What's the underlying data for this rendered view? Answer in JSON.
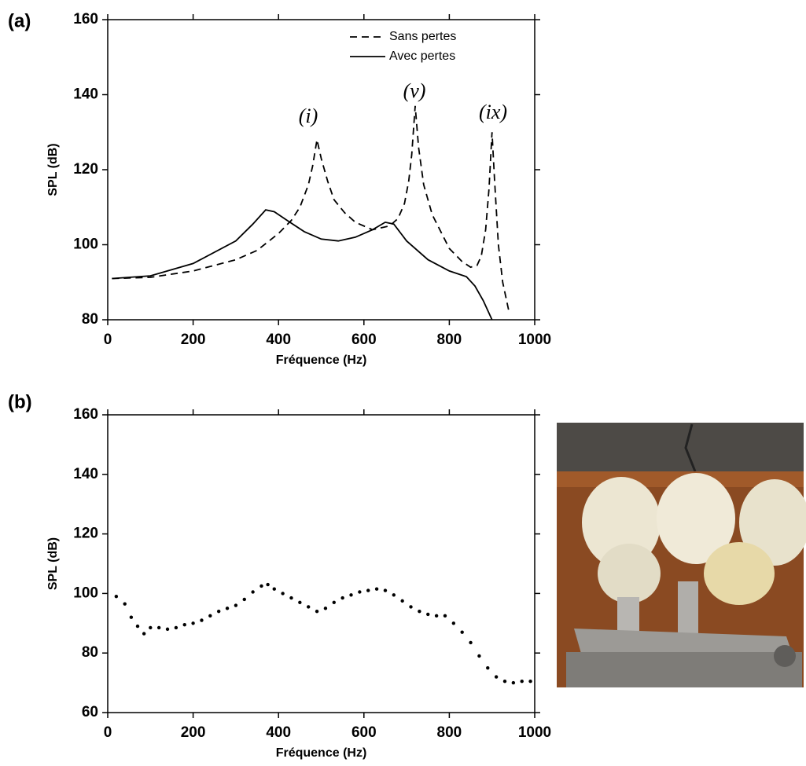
{
  "chart_data": [
    {
      "type": "line",
      "panel_label": "(a)",
      "x_label": "Fréquence (Hz)",
      "y_label": "SPL (dB)",
      "xlim": [
        0,
        1000
      ],
      "ylim": [
        80,
        160
      ],
      "xticks": [
        0,
        200,
        400,
        600,
        800,
        1000
      ],
      "yticks": [
        80,
        100,
        120,
        140,
        160
      ],
      "legend": "upper right",
      "annotations": [
        "(i)",
        "(v)",
        "(ix)"
      ],
      "series": [
        {
          "name": "Sans pertes",
          "color": "#000000",
          "linestyle": "dashed",
          "x": [
            10,
            100,
            200,
            300,
            350,
            400,
            430,
            450,
            470,
            480,
            490,
            500,
            515,
            530,
            555,
            580,
            620,
            660,
            680,
            695,
            705,
            712,
            720,
            728,
            740,
            760,
            800,
            830,
            850,
            865,
            875,
            885,
            893,
            900,
            906,
            915,
            925,
            940
          ],
          "values": [
            91,
            91.3,
            93,
            96,
            98.5,
            103,
            106.5,
            110,
            116,
            121,
            128,
            123,
            117,
            112,
            108.5,
            106,
            104,
            105,
            107,
            111,
            117,
            124,
            137,
            126,
            116,
            108,
            99,
            95.5,
            94,
            94.5,
            97,
            104,
            115,
            130,
            117,
            100,
            90,
            82
          ]
        },
        {
          "name": "Avec pertes",
          "color": "#000000",
          "linestyle": "solid",
          "x": [
            10,
            100,
            200,
            300,
            340,
            370,
            390,
            420,
            460,
            500,
            540,
            580,
            620,
            650,
            670,
            700,
            750,
            800,
            840,
            860,
            880,
            900
          ],
          "values": [
            91,
            91.7,
            95,
            101,
            105.5,
            109.3,
            108.8,
            106.5,
            103.5,
            101.5,
            101,
            102,
            104,
            106,
            105.5,
            101,
            96,
            93,
            91.5,
            89,
            85,
            80
          ]
        }
      ]
    },
    {
      "type": "scatter",
      "panel_label": "(b)",
      "x_label": "Fréquence (Hz)",
      "y_label": "SPL (dB)",
      "xlim": [
        0,
        1000
      ],
      "ylim": [
        60,
        160
      ],
      "xticks": [
        0,
        200,
        400,
        600,
        800,
        1000
      ],
      "yticks": [
        60,
        80,
        100,
        120,
        140,
        160
      ],
      "color": "#000000",
      "x": [
        20,
        40,
        55,
        70,
        85,
        100,
        120,
        140,
        160,
        180,
        200,
        220,
        240,
        260,
        280,
        300,
        320,
        340,
        360,
        375,
        390,
        410,
        430,
        450,
        470,
        490,
        510,
        530,
        550,
        570,
        590,
        610,
        630,
        650,
        670,
        690,
        710,
        730,
        750,
        770,
        790,
        810,
        830,
        850,
        870,
        890,
        910,
        930,
        950,
        970,
        990
      ],
      "values": [
        99,
        96.5,
        92,
        89,
        86.5,
        88.5,
        88.5,
        88,
        88.5,
        89.5,
        90,
        91,
        92.5,
        94,
        95,
        96,
        98,
        100.5,
        102.5,
        103,
        101.5,
        100,
        98.5,
        97,
        95.5,
        94,
        95,
        97,
        98.5,
        99.5,
        100.5,
        101,
        101.5,
        101,
        99.5,
        97.5,
        95.5,
        94,
        93,
        92.5,
        92.5,
        90,
        87,
        83.5,
        79,
        75,
        72,
        70.5,
        70,
        70.5,
        70.5
      ]
    }
  ]
}
